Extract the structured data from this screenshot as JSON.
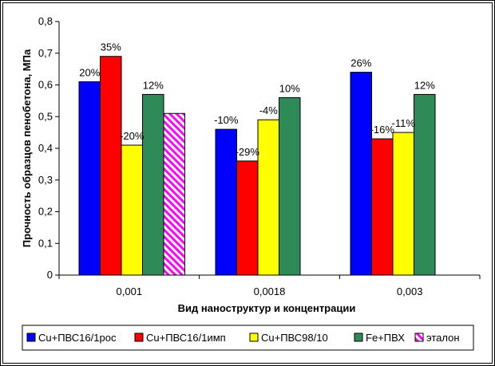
{
  "chart_data": {
    "type": "bar",
    "categories": [
      "0,001",
      "0,0018",
      "0,003"
    ],
    "series": [
      {
        "name": "Cu+ПВС16/1рос",
        "color": "#0000ff",
        "pattern": "solid",
        "values": [
          0.61,
          0.46,
          0.64
        ],
        "labels": [
          "20%",
          "-10%",
          "26%"
        ]
      },
      {
        "name": "Cu+ПВС16/1имп",
        "color": "#ff0000",
        "pattern": "solid",
        "values": [
          0.69,
          0.36,
          0.43
        ],
        "labels": [
          "35%",
          "-29%",
          "-16%"
        ]
      },
      {
        "name": "Cu+ПВС98/10",
        "color": "#ffff00",
        "pattern": "solid",
        "values": [
          0.41,
          0.49,
          0.45
        ],
        "labels": [
          "-20%",
          "-4%",
          "-11%"
        ]
      },
      {
        "name": "Fe+ПВХ",
        "color": "#2e8b57",
        "pattern": "solid",
        "values": [
          0.57,
          0.56,
          0.57
        ],
        "labels": [
          "12%",
          "10%",
          "12%"
        ]
      },
      {
        "name": "эталон",
        "color": "#ff00ff",
        "pattern": "hatched",
        "values": [
          0.51,
          null,
          null
        ],
        "labels": [
          "",
          "",
          ""
        ]
      }
    ],
    "yticks": [
      "0",
      "0,1",
      "0,2",
      "0,3",
      "0,4",
      "0,5",
      "0,6",
      "0,7",
      "0,8"
    ],
    "ylim": [
      0,
      0.8
    ],
    "xlabel": "Вид наноструктур и концентрации",
    "ylabel": "Прочность образцов пенобетона, МПа",
    "grid": false,
    "legend": "bottom"
  }
}
